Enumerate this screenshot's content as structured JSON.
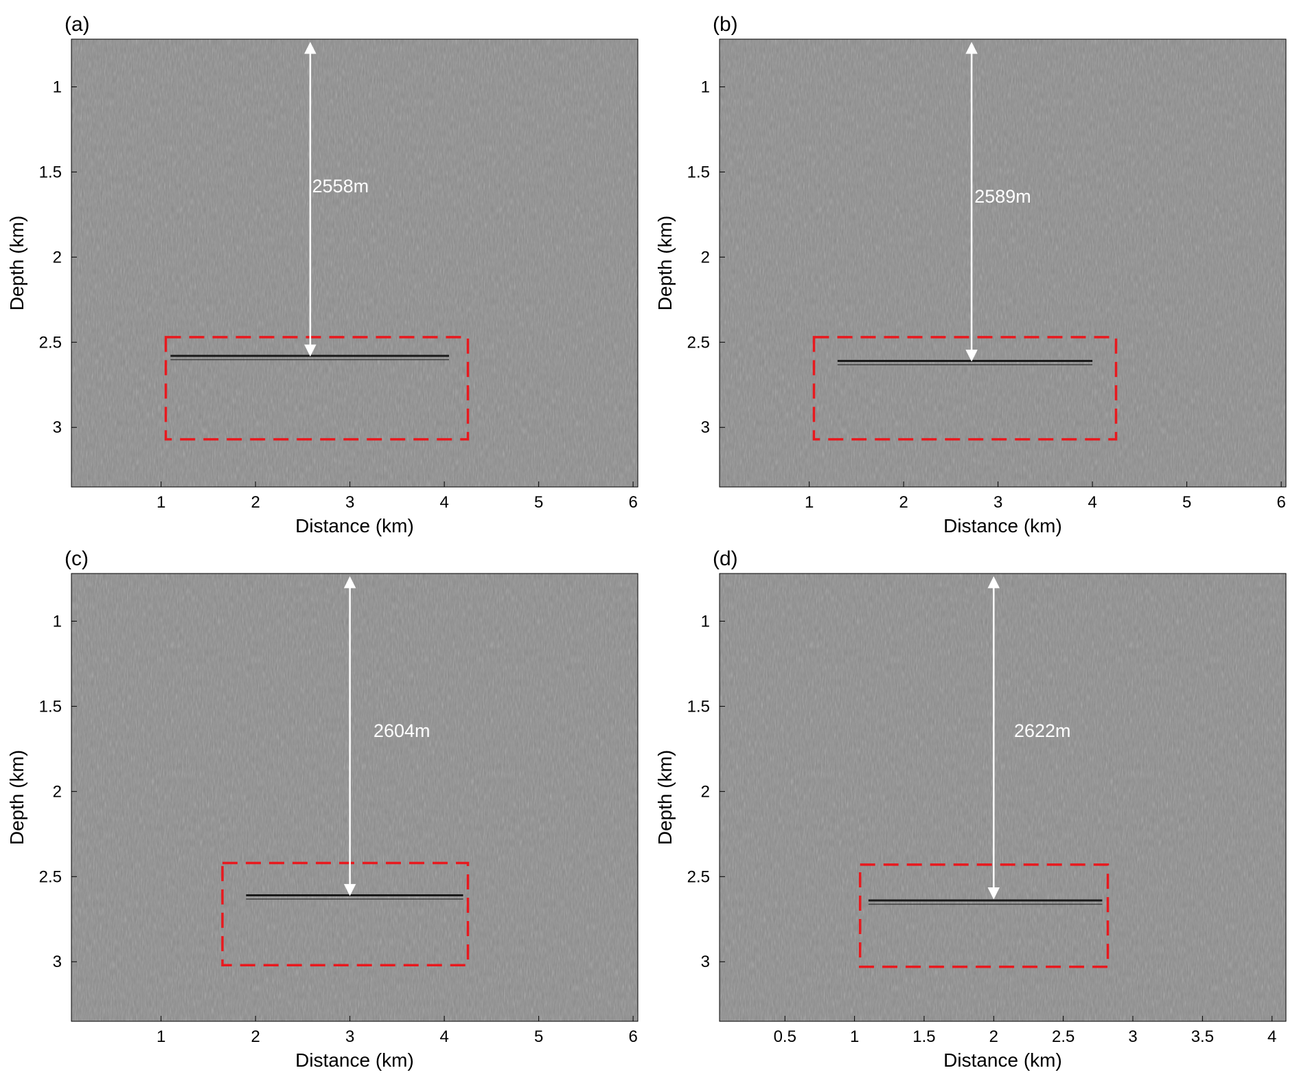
{
  "panels": [
    {
      "label": "(a)",
      "xlabel": "Distance (km)",
      "ylabel": "Depth (km)",
      "xlim": [
        0.05,
        6.05
      ],
      "ylim": [
        0.72,
        3.35
      ],
      "xticks": [
        1,
        2,
        3,
        4,
        5,
        6
      ],
      "xtick_labels": [
        "1",
        "2",
        "3",
        "4",
        "5",
        "6"
      ],
      "yticks": [
        1,
        1.5,
        2,
        2.5,
        3
      ],
      "ytick_labels": [
        "1",
        "1.5",
        "2",
        "2.5",
        "3"
      ],
      "box": {
        "x": [
          1.05,
          4.25
        ],
        "y": [
          2.47,
          3.07
        ]
      },
      "arrow": {
        "x": 2.58,
        "y": [
          0.75,
          2.57
        ]
      },
      "annotation": {
        "text": "2558m",
        "x": 2.9,
        "y": 1.62
      },
      "reflector": {
        "x": [
          1.1,
          4.05
        ],
        "y": 2.58
      },
      "interface": {
        "x": [
          1.1,
          4.05
        ],
        "y": 2.59
      }
    },
    {
      "label": "(b)",
      "xlabel": "Distance (km)",
      "ylabel": "Depth (km)",
      "xlim": [
        0.05,
        6.05
      ],
      "ylim": [
        0.72,
        3.35
      ],
      "xticks": [
        1,
        2,
        3,
        4,
        5,
        6
      ],
      "xtick_labels": [
        "1",
        "2",
        "3",
        "4",
        "5",
        "6"
      ],
      "yticks": [
        1,
        1.5,
        2,
        2.5,
        3
      ],
      "ytick_labels": [
        "1",
        "1.5",
        "2",
        "2.5",
        "3"
      ],
      "box": {
        "x": [
          1.05,
          4.25
        ],
        "y": [
          2.47,
          3.07
        ]
      },
      "arrow": {
        "x": 2.72,
        "y": [
          0.75,
          2.6
        ]
      },
      "annotation": {
        "text": "2589m",
        "x": 3.05,
        "y": 1.68
      },
      "reflector": {
        "x": [
          1.3,
          4.0
        ],
        "y": 2.61
      },
      "interface": {
        "x": [
          1.3,
          4.0
        ],
        "y": 2.62
      }
    },
    {
      "label": "(c)",
      "xlabel": "Distance (km)",
      "ylabel": "Depth (km)",
      "xlim": [
        0.05,
        6.05
      ],
      "ylim": [
        0.72,
        3.35
      ],
      "xticks": [
        1,
        2,
        3,
        4,
        5,
        6
      ],
      "xtick_labels": [
        "1",
        "2",
        "3",
        "4",
        "5",
        "6"
      ],
      "yticks": [
        1,
        1.5,
        2,
        2.5,
        3
      ],
      "ytick_labels": [
        "1",
        "1.5",
        "2",
        "2.5",
        "3"
      ],
      "box": {
        "x": [
          1.65,
          4.25
        ],
        "y": [
          2.42,
          3.02
        ]
      },
      "arrow": {
        "x": 3.0,
        "y": [
          0.75,
          2.6
        ]
      },
      "annotation": {
        "text": "2604m",
        "x": 3.55,
        "y": 1.68
      },
      "reflector": {
        "x": [
          1.9,
          4.2
        ],
        "y": 2.61
      },
      "interface": {
        "x": [
          1.9,
          4.2
        ],
        "y": 2.62
      }
    },
    {
      "label": "(d)",
      "xlabel": "Distance (km)",
      "ylabel": "Depth (km)",
      "xlim": [
        0.03,
        4.1
      ],
      "ylim": [
        0.72,
        3.35
      ],
      "xticks": [
        0.5,
        1,
        1.5,
        2,
        2.5,
        3,
        3.5,
        4
      ],
      "xtick_labels": [
        "0.5",
        "1",
        "1.5",
        "2",
        "2.5",
        "3",
        "3.5",
        "4"
      ],
      "yticks": [
        1,
        1.5,
        2,
        2.5,
        3
      ],
      "ytick_labels": [
        "1",
        "1.5",
        "2",
        "2.5",
        "3"
      ],
      "box": {
        "x": [
          1.04,
          2.82
        ],
        "y": [
          2.43,
          3.03
        ]
      },
      "arrow": {
        "x": 2.0,
        "y": [
          0.75,
          2.62
        ]
      },
      "annotation": {
        "text": "2622m",
        "x": 2.35,
        "y": 1.68
      },
      "reflector": {
        "x": [
          1.1,
          2.78
        ],
        "y": 2.64
      },
      "interface": {
        "x": [
          1.1,
          2.78
        ],
        "y": 2.65
      }
    }
  ],
  "colors": {
    "image_background": "#8c8c8c",
    "reflector": "#1a1a1a",
    "dashed_box": "#e8191e",
    "arrow": "#ffffff",
    "annotation_text": "#ffffff"
  }
}
